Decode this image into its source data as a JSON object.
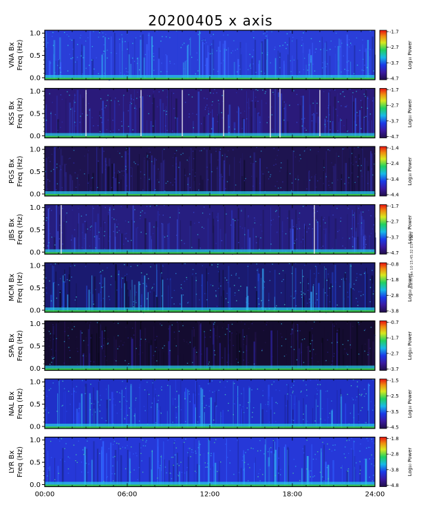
{
  "title": "20200405 x axis",
  "stamp": "sml Fri Jan 10 15:45:32 EST 2021",
  "x_ticks": [
    "00:00",
    "06:00",
    "12:00",
    "18:00",
    "24:00"
  ],
  "colorbar_label": "Log₁₀ Power",
  "colors": {
    "background_dark": "#14104a",
    "noise_blue": "#2233c8",
    "bright_cyan": "#22d0e8",
    "lowfreq_green": "#3ccc3c"
  },
  "chart_data": [
    {
      "type": "heatmap",
      "station": "VNA Bx",
      "ylabel": "Freq (Hz)",
      "y_ticks": [
        "0.0",
        "0.5",
        "1.0"
      ],
      "ylim": [
        0,
        1.05
      ],
      "xlim_hours": [
        0,
        24
      ],
      "colorbar_ticks": [
        "-1.7",
        "-2.7",
        "-3.7",
        "-4.7"
      ],
      "clim": [
        -4.7,
        -1.7
      ],
      "vertical_lines_hours": []
    },
    {
      "type": "heatmap",
      "station": "KSS Bx",
      "ylabel": "Freq (Hz)",
      "y_ticks": [
        "0.0",
        "0.5",
        "1.0"
      ],
      "ylim": [
        0,
        1.05
      ],
      "xlim_hours": [
        0,
        24
      ],
      "colorbar_ticks": [
        "-1.7",
        "-2.7",
        "-3.7",
        "-4.7"
      ],
      "clim": [
        -4.7,
        -1.7
      ],
      "vertical_lines_hours": [
        3.0,
        7.0,
        10.0,
        13.0,
        16.4,
        17.1,
        20.0
      ]
    },
    {
      "type": "heatmap",
      "station": "PGS Bx",
      "ylabel": "Freq (Hz)",
      "y_ticks": [
        "0.0",
        "0.5",
        "1.0"
      ],
      "ylim": [
        0,
        1.05
      ],
      "xlim_hours": [
        0,
        24
      ],
      "colorbar_ticks": [
        "-1.4",
        "-2.4",
        "-3.4",
        "-4.4"
      ],
      "clim": [
        -4.4,
        -1.4
      ],
      "vertical_lines_hours": []
    },
    {
      "type": "heatmap",
      "station": "JBS Bx",
      "ylabel": "Freq (Hz)",
      "y_ticks": [
        "0.0",
        "0.5",
        "1.0"
      ],
      "ylim": [
        0,
        1.05
      ],
      "xlim_hours": [
        0,
        24
      ],
      "colorbar_ticks": [
        "-1.7",
        "-2.7",
        "-3.7",
        "-4.7"
      ],
      "clim": [
        -4.7,
        -1.7
      ],
      "vertical_lines_hours": [
        1.2,
        19.6
      ]
    },
    {
      "type": "heatmap",
      "station": "MCM Bx",
      "ylabel": "Freq (Hz)",
      "y_ticks": [
        "0.0",
        "0.5",
        "1.0"
      ],
      "ylim": [
        0,
        1.05
      ],
      "xlim_hours": [
        0,
        24
      ],
      "colorbar_ticks": [
        "-0.8",
        "-1.8",
        "-2.8",
        "-3.8"
      ],
      "clim": [
        -3.8,
        -0.8
      ],
      "vertical_lines_hours": []
    },
    {
      "type": "heatmap",
      "station": "SPA Bx",
      "ylabel": "Freq (Hz)",
      "y_ticks": [
        "0.0",
        "0.5",
        "1.0"
      ],
      "ylim": [
        0,
        1.05
      ],
      "xlim_hours": [
        0,
        24
      ],
      "colorbar_ticks": [
        "-0.7",
        "-1.7",
        "-2.7",
        "-3.7"
      ],
      "clim": [
        -3.7,
        -0.7
      ],
      "vertical_lines_hours": []
    },
    {
      "type": "heatmap",
      "station": "NAL Bx",
      "ylabel": "Freq (Hz)",
      "y_ticks": [
        "0.0",
        "0.5",
        "1.0"
      ],
      "ylim": [
        0,
        1.05
      ],
      "xlim_hours": [
        0,
        24
      ],
      "colorbar_ticks": [
        "-1.5",
        "-2.5",
        "-3.5",
        "-4.5"
      ],
      "clim": [
        -4.5,
        -1.5
      ],
      "vertical_lines_hours": []
    },
    {
      "type": "heatmap",
      "station": "LYR Bx",
      "ylabel": "Freq (Hz)",
      "y_ticks": [
        "0.0",
        "0.5",
        "1.0"
      ],
      "ylim": [
        0,
        1.05
      ],
      "xlim_hours": [
        0,
        24
      ],
      "colorbar_ticks": [
        "-1.8",
        "-2.8",
        "-3.8",
        "-4.8"
      ],
      "clim": [
        -4.8,
        -1.8
      ],
      "vertical_lines_hours": []
    }
  ]
}
